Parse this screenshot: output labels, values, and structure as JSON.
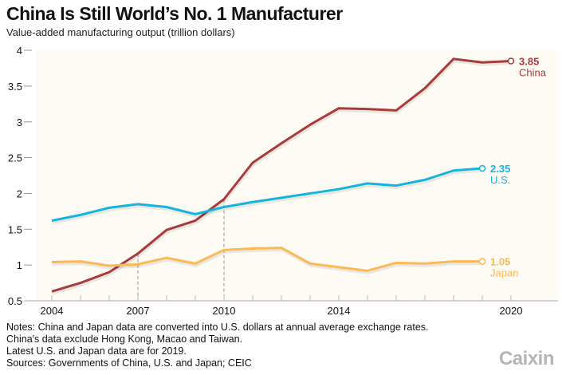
{
  "title": "China Is Still World’s No. 1 Manufacturer",
  "subtitle": "Value-added manufacturing output (trillion dollars)",
  "notes": [
    "Notes: China and Japan data are converted into U.S. dollars at annual average exchange rates. China's data exclude Hong Kong, Macao and Taiwan.",
    "Latest U.S. and Japan data are for 2019.",
    "Sources: Governments of China, U.S. and Japan; CEIC"
  ],
  "logo": "Caixin",
  "chart_data": {
    "type": "line",
    "title": "China Is Still World’s No. 1 Manufacturer",
    "ylabel": "Value-added manufacturing output (trillion dollars)",
    "xlim": [
      2003.5,
      2021.5
    ],
    "ylim": [
      0.5,
      4
    ],
    "yticks": [
      "0.5",
      "1",
      "1.5",
      "2",
      "2.5",
      "3",
      "3.5",
      "4"
    ],
    "xticks": [
      "2004",
      "2007",
      "2010",
      "2014",
      "2020"
    ],
    "grid": false,
    "background": "#fdfbf4",
    "reference_lines_x": [
      2007,
      2010
    ],
    "series": [
      {
        "name": "China",
        "color": "#a83b3b",
        "end_label": "3.85",
        "x": [
          2004,
          2005,
          2006,
          2007,
          2008,
          2009,
          2010,
          2011,
          2012,
          2013,
          2014,
          2015,
          2016,
          2017,
          2018,
          2019,
          2020
        ],
        "values": [
          0.63,
          0.75,
          0.9,
          1.16,
          1.49,
          1.62,
          1.92,
          2.43,
          2.7,
          2.96,
          3.19,
          3.18,
          3.16,
          3.47,
          3.88,
          3.83,
          3.85
        ]
      },
      {
        "name": "U.S.",
        "color": "#14b4e0",
        "end_label": "2.35",
        "x": [
          2004,
          2005,
          2006,
          2007,
          2008,
          2009,
          2010,
          2011,
          2012,
          2013,
          2014,
          2015,
          2016,
          2017,
          2018,
          2019
        ],
        "values": [
          1.62,
          1.7,
          1.8,
          1.85,
          1.81,
          1.71,
          1.81,
          1.88,
          1.94,
          2.0,
          2.06,
          2.14,
          2.11,
          2.19,
          2.32,
          2.35
        ]
      },
      {
        "name": "Japan",
        "color": "#fbb955",
        "end_label": "1.05",
        "x": [
          2004,
          2005,
          2006,
          2007,
          2008,
          2009,
          2010,
          2011,
          2012,
          2013,
          2014,
          2015,
          2016,
          2017,
          2018,
          2019
        ],
        "values": [
          1.04,
          1.05,
          0.99,
          1.01,
          1.1,
          1.02,
          1.21,
          1.23,
          1.24,
          1.02,
          0.97,
          0.92,
          1.03,
          1.02,
          1.05,
          1.05
        ]
      }
    ]
  }
}
